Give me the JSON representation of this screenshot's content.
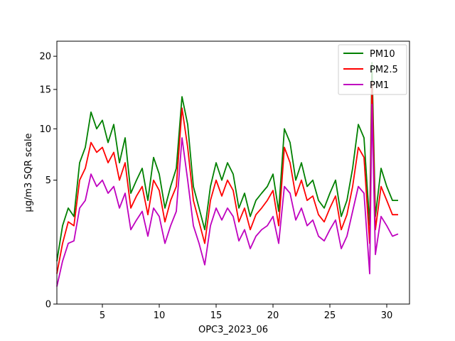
{
  "chart_data": {
    "type": "line",
    "xlabel": "OPC3_2023_06",
    "ylabel": "µg/m3 SQR scale",
    "xlim": [
      1,
      32
    ],
    "ylim": [
      0,
      22.5
    ],
    "y_scale": "sqrt",
    "grid": false,
    "legend_position": "top-right",
    "xticks": [
      5,
      10,
      15,
      20,
      25,
      30
    ],
    "yticks": [
      0,
      5,
      10,
      15,
      20
    ],
    "series": [
      {
        "name": "PM10",
        "color": "#008000",
        "x": [
          1.0,
          1.5,
          2.0,
          2.5,
          3.0,
          3.5,
          4.0,
          4.5,
          5.0,
          5.5,
          6.0,
          6.5,
          7.0,
          7.5,
          8.0,
          8.5,
          9.0,
          9.5,
          10.0,
          10.5,
          11.0,
          11.5,
          12.0,
          12.5,
          13.0,
          13.5,
          14.0,
          14.5,
          15.0,
          15.5,
          16.0,
          16.5,
          17.0,
          17.5,
          18.0,
          18.5,
          19.0,
          19.5,
          20.0,
          20.5,
          21.0,
          21.5,
          22.0,
          22.5,
          23.0,
          23.5,
          24.0,
          24.5,
          25.0,
          25.5,
          26.0,
          26.5,
          27.0,
          27.5,
          28.0,
          28.5,
          28.7,
          29.0,
          29.5,
          30.0,
          30.5,
          31.0
        ],
        "y": [
          0.6,
          2.0,
          3.0,
          2.5,
          6.5,
          8.0,
          12.0,
          10.0,
          11.0,
          8.5,
          10.5,
          6.5,
          9.0,
          4.0,
          5.0,
          6.0,
          3.5,
          7.0,
          5.5,
          3.0,
          4.5,
          6.0,
          14.0,
          10.5,
          4.5,
          3.0,
          1.8,
          4.5,
          6.5,
          5.0,
          6.5,
          5.5,
          3.0,
          4.0,
          2.5,
          3.5,
          4.0,
          4.5,
          5.5,
          2.8,
          10.0,
          8.5,
          5.0,
          6.5,
          4.5,
          5.0,
          3.5,
          3.0,
          4.0,
          5.0,
          2.5,
          3.5,
          6.0,
          10.5,
          9.0,
          2.0,
          19.0,
          2.5,
          6.0,
          4.5,
          3.5,
          3.5
        ]
      },
      {
        "name": "PM2.5",
        "color": "#ff0000",
        "x": [
          1.0,
          1.5,
          2.0,
          2.5,
          3.0,
          3.5,
          4.0,
          4.5,
          5.0,
          5.5,
          6.0,
          6.5,
          7.0,
          7.5,
          8.0,
          8.5,
          9.0,
          9.5,
          10.0,
          10.5,
          11.0,
          11.5,
          12.0,
          12.5,
          13.0,
          13.5,
          14.0,
          14.5,
          15.0,
          15.5,
          16.0,
          16.5,
          17.0,
          17.5,
          18.0,
          18.5,
          19.0,
          19.5,
          20.0,
          20.5,
          21.0,
          21.5,
          22.0,
          22.5,
          23.0,
          23.5,
          24.0,
          24.5,
          25.0,
          25.5,
          26.0,
          26.5,
          27.0,
          27.5,
          28.0,
          28.5,
          28.7,
          29.0,
          29.5,
          30.0,
          30.5,
          31.0
        ],
        "y": [
          0.3,
          1.2,
          2.2,
          2.0,
          5.0,
          6.0,
          8.5,
          7.5,
          8.0,
          6.5,
          7.5,
          5.0,
          6.5,
          3.0,
          3.8,
          4.5,
          2.6,
          5.0,
          4.2,
          2.2,
          3.5,
          4.5,
          12.5,
          8.0,
          3.5,
          2.2,
          1.2,
          3.5,
          5.0,
          3.8,
          5.0,
          4.2,
          2.2,
          3.0,
          1.8,
          2.6,
          3.0,
          3.5,
          4.2,
          2.0,
          8.0,
          6.5,
          3.8,
          5.0,
          3.5,
          3.8,
          2.6,
          2.2,
          3.0,
          3.8,
          1.8,
          2.6,
          4.5,
          8.0,
          7.0,
          1.2,
          16.0,
          1.8,
          4.5,
          3.5,
          2.6,
          2.6
        ]
      },
      {
        "name": "PM1",
        "color": "#bf00bf",
        "x": [
          1.0,
          1.5,
          2.0,
          2.5,
          3.0,
          3.5,
          4.0,
          4.5,
          5.0,
          5.5,
          6.0,
          6.5,
          7.0,
          7.5,
          8.0,
          8.5,
          9.0,
          9.5,
          10.0,
          10.5,
          11.0,
          11.5,
          12.0,
          12.5,
          13.0,
          13.5,
          14.0,
          14.5,
          15.0,
          15.5,
          16.0,
          16.5,
          17.0,
          17.5,
          18.0,
          18.5,
          19.0,
          19.5,
          20.0,
          20.5,
          21.0,
          21.5,
          22.0,
          22.5,
          23.0,
          23.5,
          24.0,
          24.5,
          25.0,
          25.5,
          26.0,
          26.5,
          27.0,
          27.5,
          28.0,
          28.5,
          28.7,
          29.0,
          29.5,
          30.0,
          30.5,
          31.0
        ],
        "y": [
          0.1,
          0.6,
          1.2,
          1.3,
          3.0,
          3.5,
          5.5,
          4.5,
          5.0,
          4.0,
          4.5,
          3.0,
          4.0,
          1.8,
          2.3,
          2.8,
          1.5,
          3.0,
          2.5,
          1.2,
          2.0,
          2.8,
          9.0,
          5.0,
          2.0,
          1.2,
          0.5,
          2.0,
          3.0,
          2.3,
          3.0,
          2.5,
          1.3,
          1.8,
          1.0,
          1.5,
          1.8,
          2.0,
          2.5,
          1.2,
          4.5,
          4.0,
          2.3,
          3.0,
          2.0,
          2.3,
          1.5,
          1.3,
          1.8,
          2.3,
          1.0,
          1.5,
          2.8,
          4.5,
          4.0,
          0.3,
          13.0,
          0.8,
          2.5,
          2.0,
          1.5,
          1.6
        ]
      }
    ]
  }
}
